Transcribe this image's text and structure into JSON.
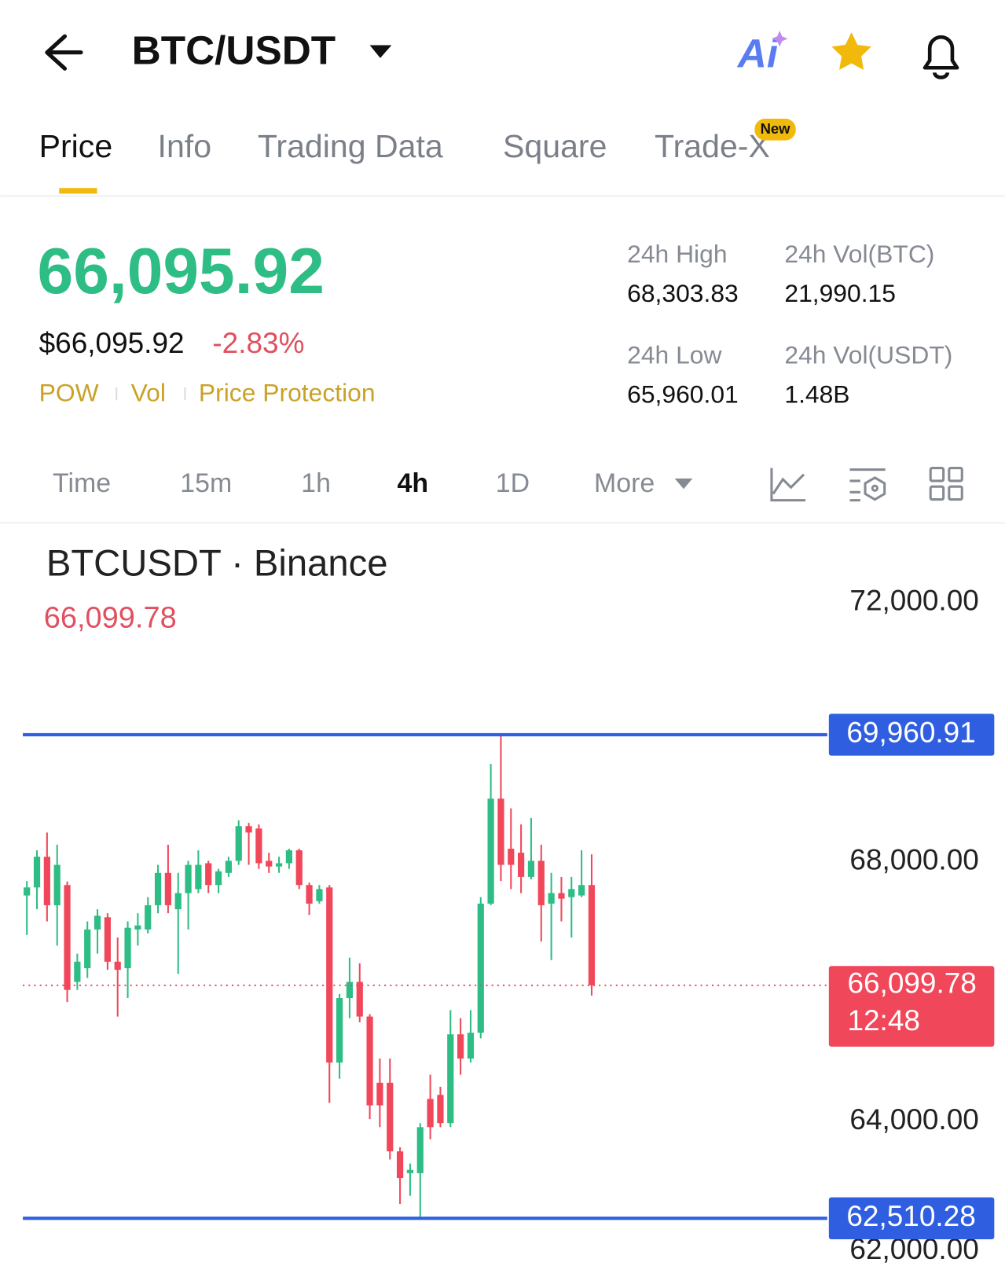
{
  "header": {
    "pair": "BTC/USDT",
    "ai_label": "Ai"
  },
  "tabs": {
    "items": [
      "Price",
      "Info",
      "Trading Data",
      "Square",
      "Trade-X"
    ],
    "badge": "New"
  },
  "price": {
    "last": "66,095.92",
    "fiat": "$66,095.92",
    "change": "-2.83%",
    "tags": [
      "POW",
      "Vol",
      "Price Protection"
    ]
  },
  "stats": [
    {
      "label": "24h High",
      "value": "68,303.83"
    },
    {
      "label": "24h Vol(BTC)",
      "value": "21,990.15"
    },
    {
      "label": "24h Low",
      "value": "65,960.01"
    },
    {
      "label": "24h Vol(USDT)",
      "value": "1.48B"
    }
  ],
  "intervals": {
    "items": [
      "Time",
      "15m",
      "1h",
      "4h",
      "1D",
      "More"
    ]
  },
  "chart_data": {
    "type": "candlestick",
    "legend_title": "BTCUSDT · Binance",
    "legend_value": "66,099.78",
    "up_color": "#2ebd85",
    "down_color": "#f0485a",
    "ylim": [
      61800,
      73200
    ],
    "yticks": [
      {
        "value": 72000,
        "label": "72,000.00"
      },
      {
        "value": 68000,
        "label": "68,000.00"
      },
      {
        "value": 64000,
        "label": "64,000.00"
      },
      {
        "value": 62000,
        "label": "62,000.00"
      }
    ],
    "open": [
      67484,
      67608,
      68081,
      67334,
      67645,
      66153,
      66364,
      66961,
      67148,
      66464,
      66364,
      66961,
      66961,
      67334,
      67832,
      67272,
      67521,
      67583,
      67981,
      67645,
      67832,
      68018,
      68553,
      68516,
      68018,
      67931,
      67981,
      68180,
      67645,
      67396,
      67608,
      64910,
      65904,
      66153,
      65619,
      64599,
      64599,
      63542,
      63206,
      63206,
      64350,
      64412,
      63977,
      65345,
      64972,
      65370,
      67359,
      68976,
      68205,
      68143,
      67770,
      68018,
      67359,
      67521,
      67459,
      67484,
      67645
    ],
    "high": [
      67707,
      68180,
      68454,
      68267,
      67700,
      66588,
      67085,
      67272,
      67210,
      66837,
      67085,
      67210,
      67459,
      67956,
      68267,
      67832,
      68018,
      68180,
      68018,
      67894,
      68081,
      68640,
      68603,
      68578,
      68143,
      68081,
      68205,
      68205,
      67683,
      67645,
      67645,
      65967,
      66526,
      66439,
      65656,
      64972,
      64972,
      63604,
      63355,
      63977,
      64723,
      64537,
      65718,
      65594,
      65718,
      67459,
      69511,
      69960.91,
      68827,
      68578,
      68678,
      68267,
      67832,
      67770,
      67770,
      68180,
      68118
    ],
    "low": [
      66874,
      67272,
      67085,
      66713,
      65842,
      66029,
      66215,
      66588,
      66339,
      65619,
      65904,
      66713,
      66899,
      67210,
      67210,
      66277,
      66961,
      67521,
      67521,
      67521,
      67770,
      67956,
      67956,
      67894,
      67832,
      67832,
      67894,
      67583,
      67185,
      67359,
      64288,
      64661,
      65594,
      65532,
      64039,
      63915,
      63417,
      62733,
      62857,
      62510.28,
      63728,
      63915,
      63915,
      64723,
      64910,
      65283,
      67334,
      67707,
      67583,
      67521,
      67732,
      66775,
      66489,
      67085,
      66837,
      67459,
      65942
    ],
    "close": [
      67608,
      68081,
      67334,
      67956,
      66029,
      66464,
      66961,
      67172,
      66464,
      66339,
      66986,
      67023,
      67334,
      67832,
      67334,
      67521,
      67956,
      67956,
      67645,
      67857,
      68018,
      68553,
      68454,
      67981,
      67931,
      67981,
      68180,
      67645,
      67359,
      67583,
      64910,
      65904,
      66153,
      65619,
      64251,
      64251,
      63542,
      63131,
      63256,
      63915,
      63915,
      63977,
      65345,
      64972,
      65370,
      67359,
      68976,
      67956,
      67956,
      67770,
      68018,
      67334,
      67521,
      67434,
      67583,
      67645,
      66099.78
    ],
    "price_lines": [
      {
        "value": 69960.91,
        "label": "69,960.91",
        "color": "#2f5fe0"
      },
      {
        "value": 62510.28,
        "label": "62,510.28",
        "color": "#2f5fe0"
      }
    ],
    "last_price": {
      "value": 66099.78,
      "label": "66,099.78",
      "countdown": "12:48",
      "color": "#f0485a"
    }
  }
}
